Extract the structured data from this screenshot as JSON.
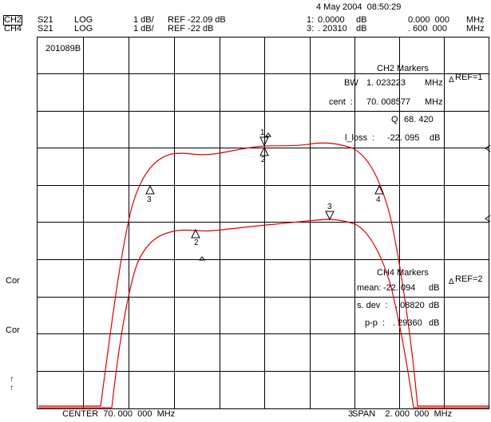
{
  "header": {
    "timestamp": "4 May 2004  08:50:29",
    "ch2": {
      "label": "CH2",
      "param": "S21",
      "format": "LOG",
      "scale": "1 dB/",
      "ref": "REF -22.09 dB"
    },
    "ch4": {
      "label": "CH4",
      "param": "S21",
      "format": "LOG",
      "scale": "1 dB/",
      "ref": "REF -22 dB"
    },
    "marker_row1": {
      "marker": "1:",
      "value": "0.0000",
      "unit": "dB",
      "freq": "0.000  000",
      "freq_unit": "MHz"
    },
    "marker_row2": {
      "marker": "3:",
      "value": ". 20310",
      "unit": "dB",
      "freq": ". 600  000",
      "freq_unit": "MHz"
    }
  },
  "plot": {
    "title_box": "201089B",
    "center_label": "CENTER  70. 000  000  MHz",
    "span_label": "SPAN    2. 000  000  MHz",
    "span_marker": "3"
  },
  "ch2_markers": {
    "title": "CH2 Markers",
    "bw_label": "BW",
    "bw_value": "1. 023223",
    "bw_unit": "MHz",
    "cent_label": "cent  :",
    "cent_value": "70. 008577",
    "cent_unit": "MHz",
    "q_label": "Q",
    "q_value": "68. 420",
    "loss_label": "l_loss  :",
    "loss_value": "-22. 095",
    "loss_unit": "dB"
  },
  "ch4_markers": {
    "title": "CH4 Markers",
    "mean_label": "mean:",
    "mean_value": "-22. 094",
    "mean_unit": "dB",
    "sdev_label": "s. dev  :",
    "sdev_value": ". 08820",
    "sdev_unit": "dB",
    "pp_label": "p-p  :",
    "pp_value": ". 29360",
    "pp_unit": "dB"
  },
  "right_side": {
    "ref1": "REF=1",
    "ref2": "REF=2"
  },
  "left_side": {
    "cor1": "Cor",
    "cor2": "Cor",
    "arrow_glyph": "↑"
  },
  "trace_markers": {
    "ch2": [
      "1",
      "2",
      "3",
      "4"
    ],
    "ch4": [
      "2",
      "3"
    ]
  },
  "colors": {
    "trace": "#e00000",
    "grid": "#000000",
    "background": "#ffffff"
  }
}
